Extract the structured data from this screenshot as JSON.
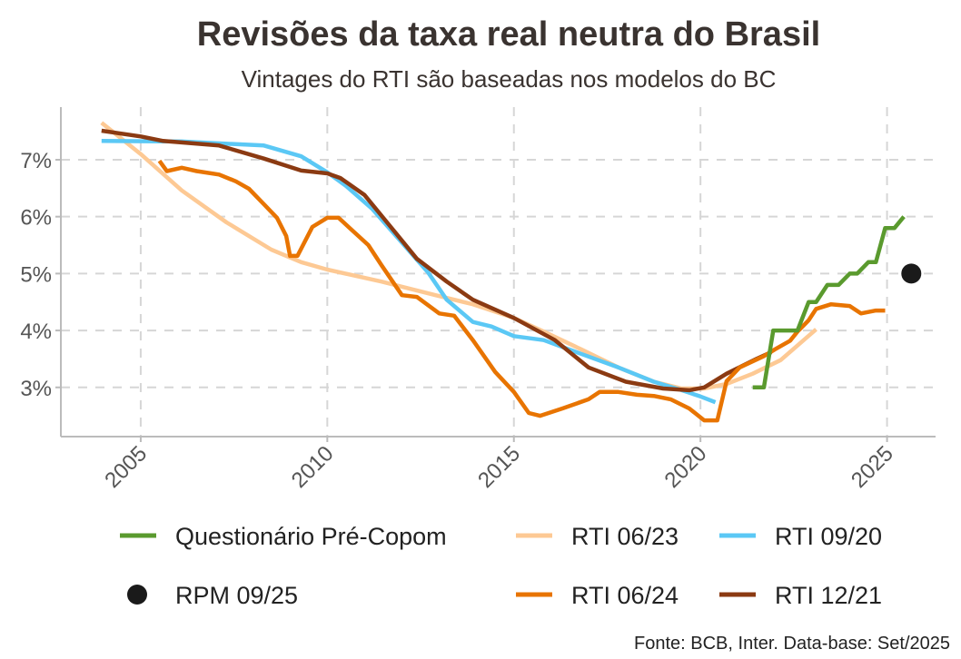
{
  "chart_data": {
    "type": "line",
    "title": "Revisões da taxa real neutra do Brasil",
    "subtitle": "Vintages do RTI são baseadas nos modelos do BC",
    "caption": "Fonte: BCB, Inter. Data-base: Set/2025",
    "xlabel": "",
    "ylabel": "",
    "xlim": [
      2002.86,
      2026.3
    ],
    "ylim": [
      2.135,
      7.925
    ],
    "x_ticks": [
      2005,
      2010,
      2015,
      2020,
      2025
    ],
    "x_tick_labels": [
      "2005",
      "2010",
      "2015",
      "2020",
      "2025"
    ],
    "y_ticks": [
      3,
      4,
      5,
      6,
      7
    ],
    "y_tick_labels": [
      "3%",
      "4%",
      "5%",
      "6%",
      "7%"
    ],
    "grid": true,
    "legend_placement": "bottom",
    "series": [
      {
        "name": "RTI 06/23",
        "color": "#FDC994",
        "points": [
          [
            2003.95,
            7.65
          ],
          [
            2005,
            7.1
          ],
          [
            2006.1,
            6.46
          ],
          [
            2007.3,
            5.9
          ],
          [
            2008.5,
            5.42
          ],
          [
            2009.3,
            5.2
          ],
          [
            2010,
            5.07
          ],
          [
            2011.45,
            4.86
          ],
          [
            2012.9,
            4.62
          ],
          [
            2013.9,
            4.46
          ],
          [
            2015,
            4.22
          ],
          [
            2015.8,
            3.98
          ],
          [
            2016.8,
            3.67
          ],
          [
            2017.8,
            3.35
          ],
          [
            2018.75,
            3.1
          ],
          [
            2019.5,
            2.98
          ],
          [
            2020.1,
            2.98
          ],
          [
            2020.7,
            3.06
          ],
          [
            2021.4,
            3.24
          ],
          [
            2022.15,
            3.48
          ],
          [
            2023.1,
            4.02
          ]
        ]
      },
      {
        "name": "RTI 09/20",
        "color": "#5BC8F5",
        "points": [
          [
            2003.95,
            7.33
          ],
          [
            2006.1,
            7.32
          ],
          [
            2008.3,
            7.25
          ],
          [
            2009.3,
            7.06
          ],
          [
            2010,
            6.78
          ],
          [
            2010.5,
            6.54
          ],
          [
            2011.2,
            6.14
          ],
          [
            2011.95,
            5.58
          ],
          [
            2012.7,
            5.02
          ],
          [
            2013.2,
            4.54
          ],
          [
            2013.9,
            4.15
          ],
          [
            2014.4,
            4.07
          ],
          [
            2015,
            3.9
          ],
          [
            2015.8,
            3.83
          ],
          [
            2016.8,
            3.59
          ],
          [
            2017.8,
            3.35
          ],
          [
            2018.75,
            3.1
          ],
          [
            2019.5,
            2.95
          ],
          [
            2020,
            2.84
          ],
          [
            2020.4,
            2.74
          ]
        ]
      },
      {
        "name": "RTI 12/21",
        "color": "#8B3A12",
        "points": [
          [
            2003.95,
            7.51
          ],
          [
            2005,
            7.41
          ],
          [
            2005.6,
            7.33
          ],
          [
            2007.1,
            7.25
          ],
          [
            2008.3,
            7.02
          ],
          [
            2009.3,
            6.81
          ],
          [
            2010,
            6.76
          ],
          [
            2010.35,
            6.68
          ],
          [
            2011,
            6.38
          ],
          [
            2011.7,
            5.82
          ],
          [
            2012.4,
            5.26
          ],
          [
            2013.2,
            4.86
          ],
          [
            2013.9,
            4.54
          ],
          [
            2015,
            4.22
          ],
          [
            2016.1,
            3.83
          ],
          [
            2017,
            3.35
          ],
          [
            2018,
            3.1
          ],
          [
            2019,
            2.98
          ],
          [
            2019.7,
            2.95
          ],
          [
            2020.1,
            3.0
          ],
          [
            2020.7,
            3.24
          ],
          [
            2021.5,
            3.5
          ],
          [
            2021.9,
            3.62
          ]
        ]
      },
      {
        "name": "RTI 06/24",
        "color": "#E87400",
        "points": [
          [
            2005.5,
            6.98
          ],
          [
            2005.7,
            6.8
          ],
          [
            2006.1,
            6.86
          ],
          [
            2006.5,
            6.8
          ],
          [
            2007.1,
            6.74
          ],
          [
            2007.55,
            6.62
          ],
          [
            2007.9,
            6.49
          ],
          [
            2008.3,
            6.22
          ],
          [
            2008.65,
            5.98
          ],
          [
            2008.9,
            5.66
          ],
          [
            2009.0,
            5.31
          ],
          [
            2009.2,
            5.31
          ],
          [
            2009.6,
            5.82
          ],
          [
            2010,
            5.98
          ],
          [
            2010.3,
            5.98
          ],
          [
            2010.7,
            5.74
          ],
          [
            2011.1,
            5.5
          ],
          [
            2011.45,
            5.15
          ],
          [
            2012,
            4.62
          ],
          [
            2012.4,
            4.59
          ],
          [
            2013.0,
            4.3
          ],
          [
            2013.4,
            4.26
          ],
          [
            2013.9,
            3.83
          ],
          [
            2014.5,
            3.27
          ],
          [
            2015,
            2.92
          ],
          [
            2015.4,
            2.55
          ],
          [
            2015.7,
            2.5
          ],
          [
            2016.3,
            2.63
          ],
          [
            2017,
            2.79
          ],
          [
            2017.3,
            2.92
          ],
          [
            2017.8,
            2.92
          ],
          [
            2018.3,
            2.87
          ],
          [
            2018.75,
            2.85
          ],
          [
            2019.2,
            2.79
          ],
          [
            2019.7,
            2.63
          ],
          [
            2020.1,
            2.42
          ],
          [
            2020.45,
            2.42
          ],
          [
            2020.7,
            3.11
          ],
          [
            2021.05,
            3.35
          ],
          [
            2021.7,
            3.55
          ],
          [
            2022,
            3.67
          ],
          [
            2022.4,
            3.82
          ],
          [
            2022.6,
            3.98
          ],
          [
            2022.9,
            4.18
          ],
          [
            2023.1,
            4.38
          ],
          [
            2023.5,
            4.46
          ],
          [
            2024,
            4.43
          ],
          [
            2024.3,
            4.3
          ],
          [
            2024.7,
            4.35
          ],
          [
            2024.95,
            4.35
          ]
        ]
      },
      {
        "name": "Questionário Pré-Copom",
        "color": "#5A9A2E",
        "points": [
          [
            2021.4,
            3.0
          ],
          [
            2021.7,
            3.0
          ],
          [
            2021.95,
            4.0
          ],
          [
            2022.6,
            4.0
          ],
          [
            2022.9,
            4.5
          ],
          [
            2023.1,
            4.5
          ],
          [
            2023.4,
            4.8
          ],
          [
            2023.7,
            4.8
          ],
          [
            2024,
            5.0
          ],
          [
            2024.2,
            5.0
          ],
          [
            2024.5,
            5.2
          ],
          [
            2024.7,
            5.2
          ],
          [
            2024.95,
            5.8
          ],
          [
            2025.2,
            5.8
          ],
          [
            2025.45,
            6.0
          ]
        ]
      },
      {
        "name": "RPM 09/25",
        "color": "#1a1a1a",
        "marker": "point",
        "points": [
          [
            2025.65,
            5.0
          ]
        ]
      }
    ],
    "legend": [
      {
        "name": "Questionário Pré-Copom",
        "color": "#5A9A2E",
        "kind": "line"
      },
      {
        "name": "RTI 06/23",
        "color": "#FDC994",
        "kind": "line"
      },
      {
        "name": "RTI 09/20",
        "color": "#5BC8F5",
        "kind": "line"
      },
      {
        "name": "RPM 09/25",
        "color": "#1a1a1a",
        "kind": "point"
      },
      {
        "name": "RTI 06/24",
        "color": "#E87400",
        "kind": "line"
      },
      {
        "name": "RTI 12/21",
        "color": "#8B3A12",
        "kind": "line"
      }
    ]
  }
}
